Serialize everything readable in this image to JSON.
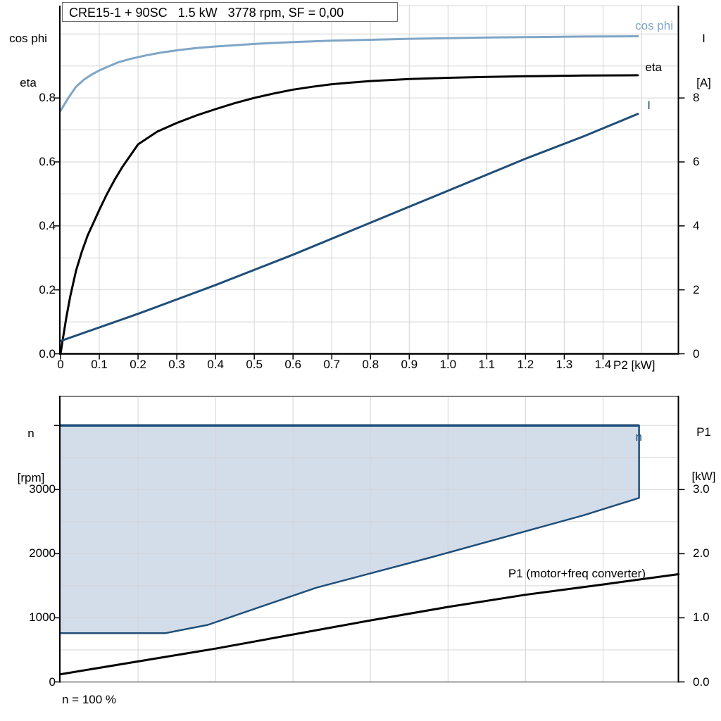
{
  "title": "CRE15-1 + 90SC   1.5 kW   3778 rpm, SF = 0,00",
  "caption": "n = 100 %",
  "colors": {
    "light_blue": "#7FA5C6",
    "dark_blue": "#1F4E79",
    "black": "#000000",
    "region_fill": "#D3DCE9",
    "grid": "#D5D5D5",
    "frame_gray": "#808080",
    "axis_black": "#000000"
  },
  "chart_data": [
    {
      "type": "line",
      "title": "CRE15-1 + 90SC   1.5 kW   3778 rpm, SF = 0,00",
      "x_axis": {
        "label": "P2 [kW]",
        "tick_labels": [
          "0",
          "0.1",
          "0.2",
          "0.3",
          "0.4",
          "0.5",
          "0.6",
          "0.7",
          "0.8",
          "0.9",
          "1.0",
          "1.1",
          "1.2",
          "1.3",
          "1.4"
        ],
        "tick_values": [
          0,
          0.1,
          0.2,
          0.3,
          0.4,
          0.5,
          0.6,
          0.7,
          0.8,
          0.9,
          1.0,
          1.1,
          1.2,
          1.3,
          1.4
        ],
        "range": [
          0,
          1.595
        ],
        "grid_step": 0.1
      },
      "y_left": {
        "title_line1": "cos phi",
        "title_line2": "eta",
        "tick_labels": [
          "0.0",
          "0.2",
          "0.4",
          "0.6",
          "0.8"
        ],
        "tick_values": [
          0,
          0.2,
          0.4,
          0.6,
          0.8
        ],
        "range": [
          0,
          1.088
        ],
        "grid_step": 0.1
      },
      "y_right": {
        "title_line1": "I",
        "title_line2": "[A]",
        "tick_labels": [
          "0",
          "2",
          "4",
          "6",
          "8"
        ],
        "tick_values": [
          0,
          2,
          4,
          6,
          8
        ],
        "range": [
          0,
          10.88
        ]
      },
      "series": [
        {
          "name": "cos phi",
          "axis": "left",
          "color": "light_blue",
          "points": [
            [
              0,
              0.76
            ],
            [
              0.02,
              0.8
            ],
            [
              0.04,
              0.835
            ],
            [
              0.06,
              0.857
            ],
            [
              0.08,
              0.873
            ],
            [
              0.1,
              0.886
            ],
            [
              0.12,
              0.897
            ],
            [
              0.15,
              0.912
            ],
            [
              0.18,
              0.922
            ],
            [
              0.22,
              0.933
            ],
            [
              0.26,
              0.942
            ],
            [
              0.3,
              0.949
            ],
            [
              0.35,
              0.956
            ],
            [
              0.4,
              0.961
            ],
            [
              0.45,
              0.965
            ],
            [
              0.5,
              0.969
            ],
            [
              0.6,
              0.975
            ],
            [
              0.7,
              0.979
            ],
            [
              0.8,
              0.982
            ],
            [
              0.9,
              0.985
            ],
            [
              1.0,
              0.987
            ],
            [
              1.1,
              0.989
            ],
            [
              1.2,
              0.99
            ],
            [
              1.35,
              0.992
            ],
            [
              1.49,
              0.993
            ]
          ]
        },
        {
          "name": "eta",
          "axis": "left",
          "color": "black",
          "points": [
            [
              0,
              0
            ],
            [
              0.005,
              0.04
            ],
            [
              0.015,
              0.115
            ],
            [
              0.025,
              0.18
            ],
            [
              0.04,
              0.26
            ],
            [
              0.055,
              0.32
            ],
            [
              0.07,
              0.37
            ],
            [
              0.085,
              0.41
            ],
            [
              0.1,
              0.45
            ],
            [
              0.12,
              0.5
            ],
            [
              0.14,
              0.545
            ],
            [
              0.16,
              0.585
            ],
            [
              0.18,
              0.62
            ],
            [
              0.2,
              0.655
            ],
            [
              0.25,
              0.695
            ],
            [
              0.3,
              0.722
            ],
            [
              0.35,
              0.745
            ],
            [
              0.4,
              0.765
            ],
            [
              0.45,
              0.784
            ],
            [
              0.5,
              0.8
            ],
            [
              0.55,
              0.814
            ],
            [
              0.6,
              0.826
            ],
            [
              0.65,
              0.835
            ],
            [
              0.7,
              0.843
            ],
            [
              0.75,
              0.848
            ],
            [
              0.8,
              0.853
            ],
            [
              0.9,
              0.859
            ],
            [
              1.0,
              0.863
            ],
            [
              1.1,
              0.866
            ],
            [
              1.2,
              0.868
            ],
            [
              1.35,
              0.87
            ],
            [
              1.49,
              0.871
            ]
          ]
        },
        {
          "name": "I",
          "axis": "right",
          "color": "dark_blue",
          "points": [
            [
              0,
              0.4
            ],
            [
              0.2,
              1.25
            ],
            [
              0.4,
              2.15
            ],
            [
              0.6,
              3.1
            ],
            [
              0.8,
              4.1
            ],
            [
              1.0,
              5.1
            ],
            [
              1.2,
              6.1
            ],
            [
              1.35,
              6.8
            ],
            [
              1.49,
              7.5
            ]
          ]
        }
      ]
    },
    {
      "type": "line",
      "x_axis": {
        "label": "",
        "tick_labels": [],
        "tick_values": [],
        "range": [
          0,
          1.595
        ],
        "grid_step": 0.2
      },
      "y_left": {
        "title_line1": "n",
        "title_line2": "[rpm]",
        "tick_labels": [
          "0",
          "1000",
          "2000",
          "3000"
        ],
        "tick_values": [
          0,
          1000,
          2000,
          3000
        ],
        "extra_tick_values": [
          4000
        ],
        "range": [
          0,
          4455
        ],
        "grid_step": 500
      },
      "y_right": {
        "title_line1": "P1",
        "title_line2": "[kW]",
        "tick_labels": [
          "0.0",
          "1.0",
          "2.0",
          "3.0"
        ],
        "tick_values": [
          0,
          1,
          2,
          3
        ],
        "range": [
          0,
          4.455
        ]
      },
      "region": {
        "name": "n",
        "axis": "left",
        "fill": "region_fill",
        "stroke": "dark_blue",
        "points": [
          [
            0,
            4000
          ],
          [
            1.493,
            4000
          ],
          [
            1.493,
            2870
          ],
          [
            1.35,
            2600
          ],
          [
            0.96,
            1950
          ],
          [
            0.66,
            1470
          ],
          [
            0.38,
            890
          ],
          [
            0.27,
            760
          ],
          [
            0,
            760
          ]
        ]
      },
      "series": [
        {
          "name": "P1 (motor+freq converter)",
          "axis": "right",
          "color": "black",
          "points": [
            [
              0,
              0.12
            ],
            [
              0.2,
              0.32
            ],
            [
              0.4,
              0.52
            ],
            [
              0.6,
              0.74
            ],
            [
              0.8,
              0.96
            ],
            [
              1.0,
              1.17
            ],
            [
              1.2,
              1.36
            ],
            [
              1.4,
              1.52
            ],
            [
              1.595,
              1.68
            ]
          ]
        }
      ]
    }
  ]
}
